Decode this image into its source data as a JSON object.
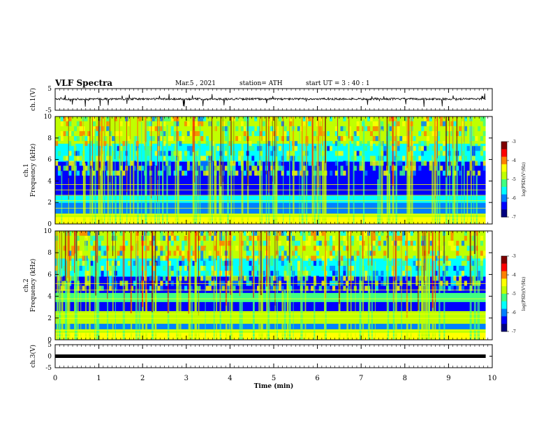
{
  "header": {
    "title": "VLF Spectra",
    "date": "Mar.5 , 2021",
    "station": "station= ATH",
    "start": "start UT = 3 : 40 : 1"
  },
  "chart_data": [
    {
      "type": "line",
      "panel": "ch1-waveform",
      "ylabel": "ch.1(V)",
      "ylim": [
        -5,
        5
      ],
      "yticks": [
        5,
        -5
      ],
      "xlim": [
        0,
        10
      ],
      "series": [
        {
          "values_summary": "noisy baseline near 0 V with frequent spikes",
          "baseline": 0.2
        }
      ]
    },
    {
      "type": "heatmap",
      "panel": "ch1-spectrogram",
      "ylabel": "ch.1 Frequency (kHz)",
      "ylim": [
        0,
        10
      ],
      "yticks": [
        0,
        2,
        4,
        6,
        8,
        10
      ],
      "xlim": [
        0,
        10
      ],
      "data_end_min": 9.85,
      "colorbar": {
        "label": "log(PSD)(V²/Hz)",
        "range": [
          -7,
          -3
        ],
        "ticks": [
          -3,
          -4,
          -5,
          -6,
          -7
        ]
      }
    },
    {
      "type": "heatmap",
      "panel": "ch2-spectrogram",
      "ylabel": "ch.2 Frequency (kHz)",
      "ylim": [
        0,
        10
      ],
      "yticks": [
        0,
        2,
        4,
        6,
        8,
        10
      ],
      "xlim": [
        0,
        10
      ],
      "data_end_min": 9.85,
      "colorbar": {
        "label": "log(PSD)(V²/Hz)",
        "range": [
          -7,
          -3
        ],
        "ticks": [
          -3,
          -4,
          -5,
          -6,
          -7
        ]
      }
    },
    {
      "type": "line",
      "panel": "ch3-waveform",
      "ylabel": "ch.3(V)",
      "ylim": [
        -5,
        5
      ],
      "yticks": [
        5,
        0,
        -5
      ],
      "xlim": [
        0,
        10
      ],
      "series": [
        {
          "values_summary": "flat thick line",
          "baseline": 0
        }
      ]
    }
  ],
  "axes": {
    "xlabel": "Time (min)",
    "xticks": [
      0,
      1,
      2,
      3,
      4,
      5,
      6,
      7,
      8,
      9,
      10
    ]
  },
  "colormap": [
    "#000080",
    "#0000ff",
    "#0080ff",
    "#00ffff",
    "#40ff80",
    "#c0ff00",
    "#ffff00",
    "#ff8000",
    "#ff0000",
    "#800000"
  ]
}
